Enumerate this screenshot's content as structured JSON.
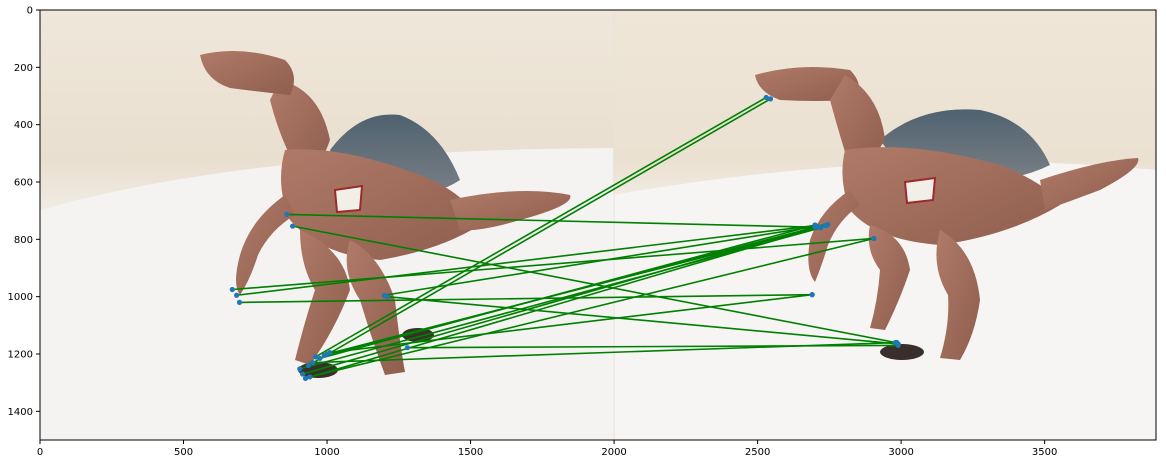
{
  "chart_data": {
    "type": "scatter",
    "title": "",
    "xlabel": "",
    "ylabel": "",
    "xlim": [
      0,
      3888
    ],
    "ylim": [
      1500,
      0
    ],
    "x_ticks": [
      0,
      500,
      1000,
      1500,
      2000,
      2500,
      3000,
      3500
    ],
    "y_ticks": [
      0,
      200,
      400,
      600,
      800,
      1000,
      1200,
      1400
    ],
    "image_split_x": 2000,
    "image_description": "Two side-by-side photos of a brown spinosaurus toy on a white surface",
    "line_color": "#008000",
    "point_color": "#1f77b4",
    "matches": [
      {
        "x1": 860,
        "y1": 713,
        "x2": 2715,
        "y2": 758
      },
      {
        "x1": 880,
        "y1": 754,
        "x2": 2980,
        "y2": 1160
      },
      {
        "x1": 670,
        "y1": 975,
        "x2": 2905,
        "y2": 797
      },
      {
        "x1": 685,
        "y1": 995,
        "x2": 2700,
        "y2": 752
      },
      {
        "x1": 695,
        "y1": 1020,
        "x2": 2690,
        "y2": 993
      },
      {
        "x1": 1200,
        "y1": 995,
        "x2": 2745,
        "y2": 748
      },
      {
        "x1": 1210,
        "y1": 1000,
        "x2": 2990,
        "y2": 1165
      },
      {
        "x1": 1280,
        "y1": 1178,
        "x2": 2990,
        "y2": 1170
      },
      {
        "x1": 960,
        "y1": 1210,
        "x2": 2530,
        "y2": 305
      },
      {
        "x1": 975,
        "y1": 1215,
        "x2": 2700,
        "y2": 750
      },
      {
        "x1": 990,
        "y1": 1205,
        "x2": 2710,
        "y2": 755
      },
      {
        "x1": 1000,
        "y1": 1200,
        "x2": 2740,
        "y2": 752
      },
      {
        "x1": 1010,
        "y1": 1195,
        "x2": 2690,
        "y2": 993
      },
      {
        "x1": 950,
        "y1": 1230,
        "x2": 2985,
        "y2": 1160
      },
      {
        "x1": 905,
        "y1": 1252,
        "x2": 2720,
        "y2": 760
      },
      {
        "x1": 915,
        "y1": 1270,
        "x2": 2700,
        "y2": 757
      },
      {
        "x1": 925,
        "y1": 1285,
        "x2": 2735,
        "y2": 752
      },
      {
        "x1": 940,
        "y1": 1280,
        "x2": 2905,
        "y2": 797
      },
      {
        "x1": 935,
        "y1": 1240,
        "x2": 2545,
        "y2": 310
      }
    ]
  }
}
